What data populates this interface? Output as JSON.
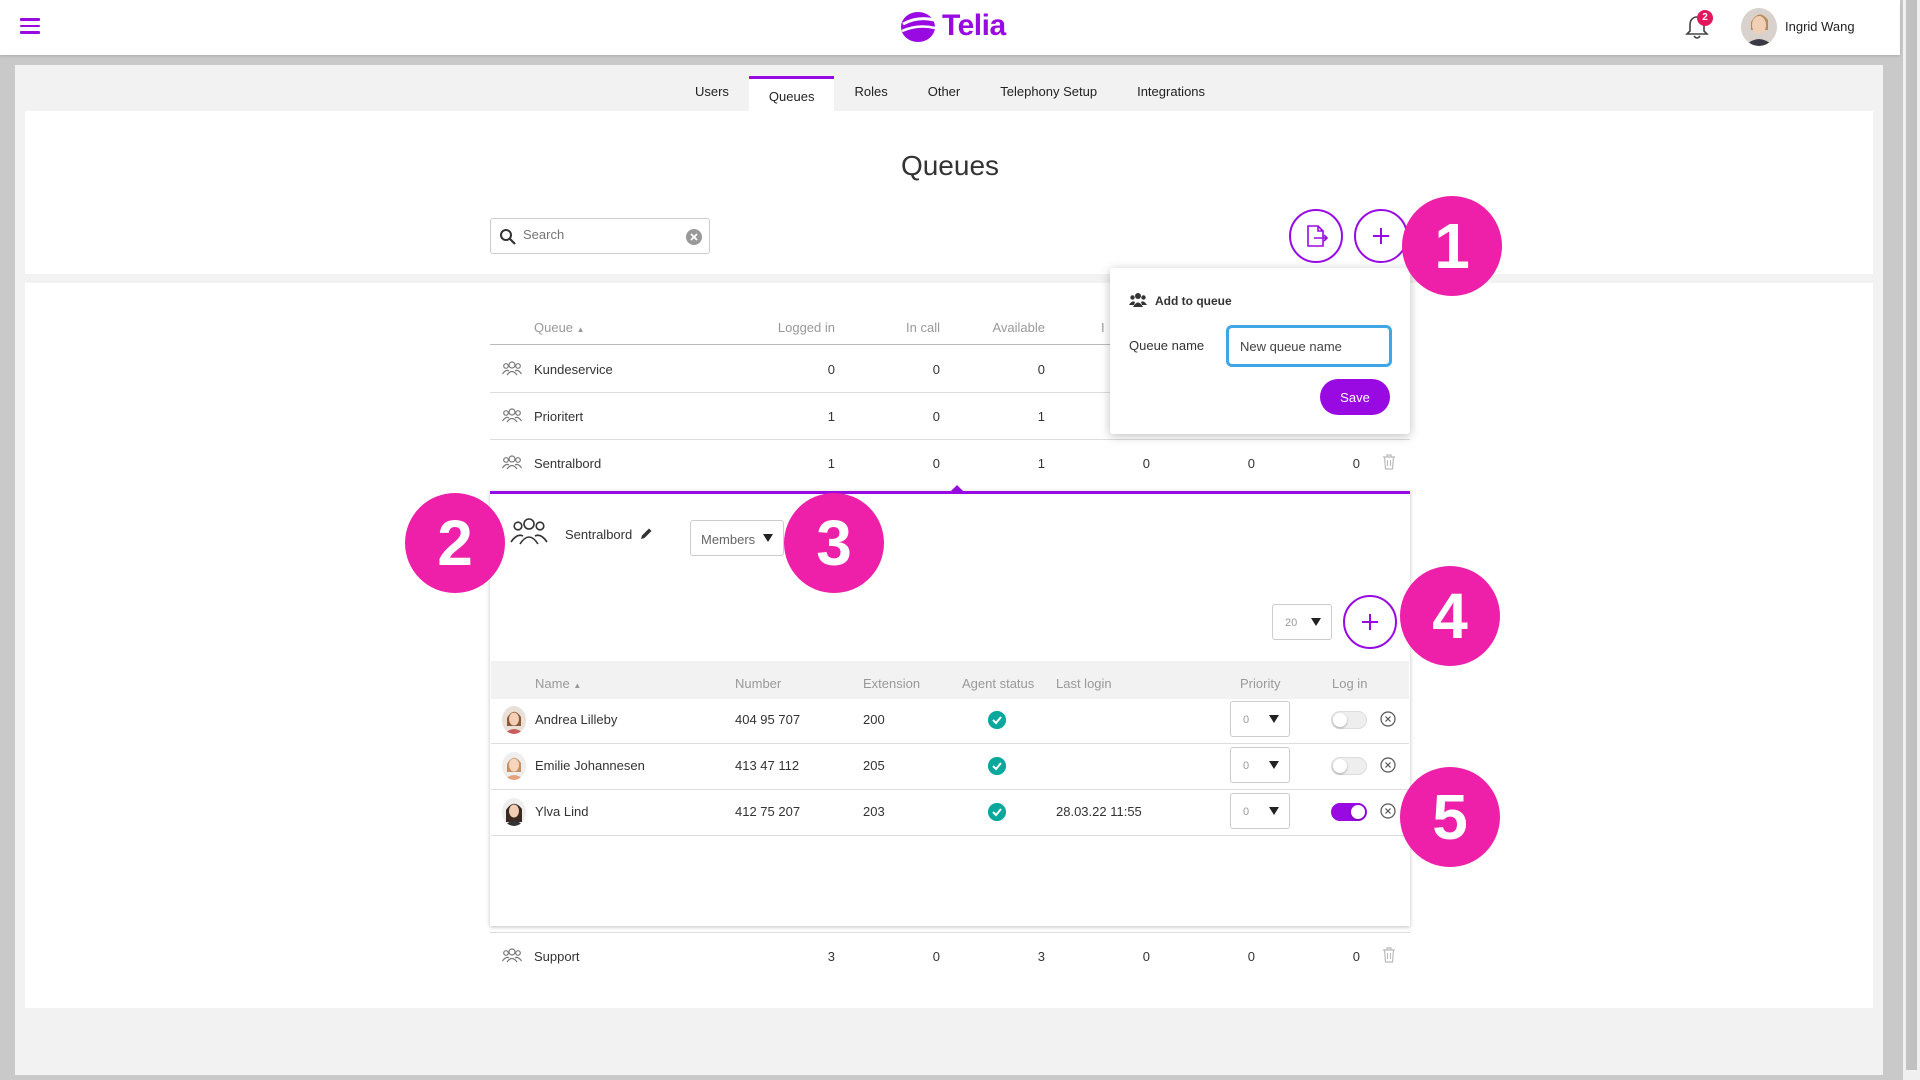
{
  "app": {
    "logo_text": "Telia",
    "brand_color": "#990ae3"
  },
  "header": {
    "notification_count": "2",
    "user_name": "Ingrid Wang"
  },
  "tabs": [
    {
      "label": "Users"
    },
    {
      "label": "Queues",
      "active": true
    },
    {
      "label": "Roles"
    },
    {
      "label": "Other"
    },
    {
      "label": "Telephony Setup"
    },
    {
      "label": "Integrations"
    }
  ],
  "page": {
    "title": "Queues"
  },
  "search": {
    "placeholder": "Search"
  },
  "queue_table": {
    "headers": [
      "Queue",
      "Logged in",
      "In call",
      "Available",
      "I"
    ],
    "rows": [
      {
        "name": "Kundeservice",
        "logged_in": "0",
        "in_call": "0",
        "available": "0"
      },
      {
        "name": "Prioritert",
        "logged_in": "1",
        "in_call": "0",
        "available": "1"
      },
      {
        "name": "Sentralbord",
        "logged_in": "1",
        "in_call": "0",
        "available": "1",
        "c4": "0",
        "c5": "0",
        "c6": "0"
      },
      {
        "name": "Support",
        "logged_in": "3",
        "in_call": "0",
        "available": "3",
        "c4": "0",
        "c5": "0",
        "c6": "0"
      }
    ]
  },
  "popup": {
    "title": "Add to queue",
    "label": "Queue name",
    "input_value": "New queue name",
    "save_label": "Save"
  },
  "panel": {
    "queue_name": "Sentralbord",
    "view_select": "Members",
    "page_size": "20",
    "headers": [
      "Name",
      "Number",
      "Extension",
      "Agent status",
      "Last login",
      "Priority",
      "Log in"
    ],
    "members": [
      {
        "name": "Andrea Lilleby",
        "number": "404 95 707",
        "extension": "200",
        "last_login": "",
        "priority": "0",
        "logged_in": false
      },
      {
        "name": "Emilie Johannesen",
        "number": "413 47 112",
        "extension": "205",
        "last_login": "",
        "priority": "0",
        "logged_in": false
      },
      {
        "name": "Ylva Lind",
        "number": "412 75 207",
        "extension": "203",
        "last_login": "28.03.22 11:55",
        "priority": "0",
        "logged_in": true
      }
    ]
  },
  "callouts": [
    "1",
    "2",
    "3",
    "4",
    "5"
  ],
  "callout_color": "#ee1fa8"
}
